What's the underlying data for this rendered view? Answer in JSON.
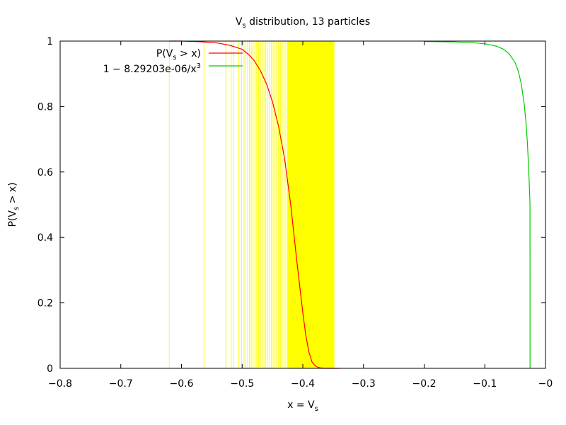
{
  "chart_data": {
    "type": "line",
    "title_main": "V",
    "title_sub": "s",
    "title_rest": " distribution, 13 particles",
    "xlabel_main": "x = V",
    "xlabel_sub": "s",
    "ylabel_a": "P(V",
    "ylabel_sub": "s",
    "ylabel_b": " > x)",
    "xlim": [
      -0.8,
      0
    ],
    "ylim": [
      0,
      1
    ],
    "xticks": [
      {
        "value": -0.8,
        "label": "−0.8"
      },
      {
        "value": -0.7,
        "label": "−0.7"
      },
      {
        "value": -0.6,
        "label": "−0.6"
      },
      {
        "value": -0.5,
        "label": "−0.5"
      },
      {
        "value": -0.4,
        "label": "−0.4"
      },
      {
        "value": -0.3,
        "label": "−0.3"
      },
      {
        "value": -0.2,
        "label": "−0.2"
      },
      {
        "value": -0.1,
        "label": "−0.1"
      },
      {
        "value": 0,
        "label": "−0"
      }
    ],
    "yticks": [
      {
        "value": 0,
        "label": "0"
      },
      {
        "value": 0.2,
        "label": "0.2"
      },
      {
        "value": 0.4,
        "label": "0.4"
      },
      {
        "value": 0.6,
        "label": "0.6"
      },
      {
        "value": 0.8,
        "label": "0.8"
      },
      {
        "value": 1,
        "label": "1"
      }
    ],
    "legend_position": "top-left",
    "legend": [
      {
        "label_a": "P(V",
        "label_sub": "s",
        "label_b": " > x)",
        "color": "#ff0000"
      },
      {
        "label_a": "1 − 8.29203e-06/x",
        "label_sup": "3",
        "color": "#00cc00"
      }
    ],
    "series": [
      {
        "color": "#ff0000",
        "x": [
          -0.62,
          -0.6,
          -0.58,
          -0.56,
          -0.54,
          -0.52,
          -0.5,
          -0.49,
          -0.48,
          -0.47,
          -0.46,
          -0.45,
          -0.44,
          -0.43,
          -0.42,
          -0.41,
          -0.405,
          -0.4,
          -0.395,
          -0.39,
          -0.385,
          -0.38,
          -0.375,
          -0.37,
          -0.365,
          -0.36,
          -0.35,
          -0.34
        ],
        "y": [
          1.0,
          1.0,
          0.999,
          0.997,
          0.994,
          0.987,
          0.975,
          0.96,
          0.94,
          0.91,
          0.87,
          0.815,
          0.74,
          0.64,
          0.5,
          0.33,
          0.25,
          0.17,
          0.1,
          0.05,
          0.02,
          0.008,
          0.003,
          0.001,
          0.0,
          0.0,
          0.0,
          0.0
        ]
      },
      {
        "color": "#00cc00",
        "x": [
          -0.2,
          -0.15,
          -0.12,
          -0.1,
          -0.09,
          -0.08,
          -0.07,
          -0.06,
          -0.05,
          -0.045,
          -0.04,
          -0.035,
          -0.032,
          -0.03,
          -0.028,
          -0.027,
          -0.026,
          -0.0255,
          -0.02548
        ],
        "y": [
          0.999,
          0.9975,
          0.9952,
          0.9917,
          0.9886,
          0.9838,
          0.9758,
          0.9616,
          0.9337,
          0.909,
          0.8704,
          0.8066,
          0.7469,
          0.6929,
          0.6223,
          0.5787,
          0.5281,
          0.4996,
          0.0
        ]
      }
    ],
    "vlines": {
      "color": "#ffff00",
      "x": [
        -0.62,
        -0.563,
        -0.527,
        -0.518,
        -0.514,
        -0.506,
        -0.501,
        -0.497,
        -0.494,
        -0.491,
        -0.488,
        -0.485,
        -0.482,
        -0.479,
        -0.476,
        -0.473,
        -0.47,
        -0.467,
        -0.464,
        -0.461,
        -0.458,
        -0.455,
        -0.452,
        -0.449,
        -0.446,
        -0.443,
        -0.44,
        -0.437,
        -0.434,
        -0.431,
        -0.428,
        -0.425
      ],
      "band": [
        -0.425,
        -0.348
      ]
    }
  }
}
